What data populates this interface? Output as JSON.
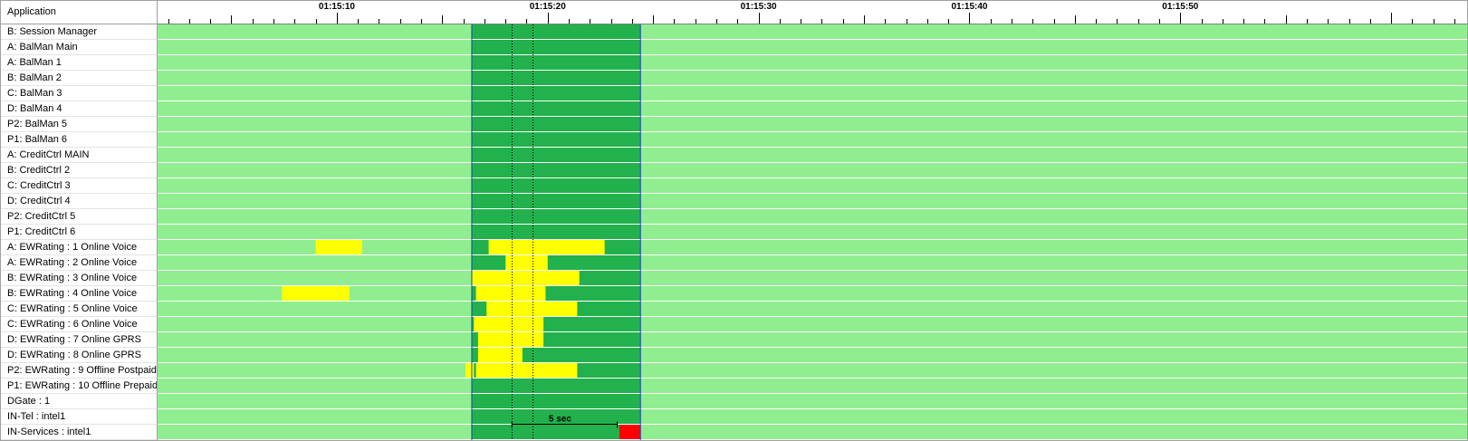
{
  "header": {
    "column_title": "Application"
  },
  "timeline": {
    "start_seconds": 4501.5,
    "end_seconds": 4563.6,
    "minor_tick_seconds": 1,
    "major_tick_seconds": 10,
    "major_labels": [
      {
        "t": 4510,
        "label": "01:15:10"
      },
      {
        "t": 4520,
        "label": "01:15:20"
      },
      {
        "t": 4530,
        "label": "01:15:30"
      },
      {
        "t": 4540,
        "label": "01:15:40"
      },
      {
        "t": 4550,
        "label": "01:15:50"
      }
    ]
  },
  "colors": {
    "idle": "#90ee90",
    "active": "#22b14c",
    "busy": "#ffff00",
    "error": "#ff0000",
    "row_separator": "#ffffff",
    "window_edge": "#1f3fbf"
  },
  "window": {
    "start": 4516.4,
    "end": 4524.4
  },
  "markers": [
    4518.3,
    4519.3
  ],
  "measurement": {
    "start": 4518.3,
    "end": 4523.3,
    "label": "5 sec"
  },
  "rows": [
    {
      "label": "B: Session Manager",
      "segments": []
    },
    {
      "label": "A: BalMan Main",
      "segments": []
    },
    {
      "label": "A: BalMan 1",
      "segments": []
    },
    {
      "label": "B: BalMan 2",
      "segments": []
    },
    {
      "label": "C: BalMan 3",
      "segments": []
    },
    {
      "label": "D: BalMan 4",
      "segments": []
    },
    {
      "label": "P2: BalMan 5",
      "segments": []
    },
    {
      "label": "P1: BalMan 6",
      "segments": []
    },
    {
      "label": "A: CreditCtrl MAIN",
      "segments": []
    },
    {
      "label": "B: CreditCtrl 2",
      "segments": []
    },
    {
      "label": "C: CreditCtrl 3",
      "segments": []
    },
    {
      "label": "D: CreditCtrl 4",
      "segments": []
    },
    {
      "label": "P2: CreditCtrl 5",
      "segments": []
    },
    {
      "label": "P1: CreditCtrl 6",
      "segments": []
    },
    {
      "label": "A: EWRating : 1 Online Voice",
      "segments": [
        {
          "start": 4509.0,
          "end": 4511.2,
          "state": "busy"
        },
        {
          "start": 4517.2,
          "end": 4522.7,
          "state": "busy"
        }
      ]
    },
    {
      "label": "A: EWRating : 2 Online Voice",
      "segments": [
        {
          "start": 4518.0,
          "end": 4520.0,
          "state": "busy"
        }
      ]
    },
    {
      "label": "B: EWRating : 3 Online Voice",
      "segments": [
        {
          "start": 4516.4,
          "end": 4521.5,
          "state": "busy"
        }
      ]
    },
    {
      "label": "B: EWRating : 4 Online Voice",
      "segments": [
        {
          "start": 4507.4,
          "end": 4510.6,
          "state": "busy"
        },
        {
          "start": 4516.6,
          "end": 4519.9,
          "state": "busy"
        }
      ]
    },
    {
      "label": "C: EWRating : 5 Online Voice",
      "segments": [
        {
          "start": 4517.1,
          "end": 4521.4,
          "state": "busy"
        }
      ]
    },
    {
      "label": "C: EWRating : 6 Online Voice",
      "segments": [
        {
          "start": 4516.5,
          "end": 4519.8,
          "state": "busy"
        }
      ]
    },
    {
      "label": "D: EWRating : 7 Online GPRS",
      "segments": [
        {
          "start": 4516.7,
          "end": 4519.8,
          "state": "busy"
        }
      ]
    },
    {
      "label": "D: EWRating : 8 Online GPRS",
      "segments": [
        {
          "start": 4516.7,
          "end": 4518.8,
          "state": "busy"
        }
      ]
    },
    {
      "label": "P2: EWRating : 9 Offline Postpaid",
      "segments": [
        {
          "start": 4516.1,
          "end": 4516.5,
          "state": "busy"
        },
        {
          "start": 4516.6,
          "end": 4521.4,
          "state": "busy"
        }
      ]
    },
    {
      "label": "P1: EWRating : 10 Offline Prepaid",
      "segments": []
    },
    {
      "label": "DGate : 1",
      "segments": []
    },
    {
      "label": "IN-Tel : intel1",
      "segments": []
    },
    {
      "label": "IN-Services : intel1",
      "segments": [
        {
          "start": 4523.4,
          "end": 4524.4,
          "state": "error"
        }
      ]
    }
  ]
}
